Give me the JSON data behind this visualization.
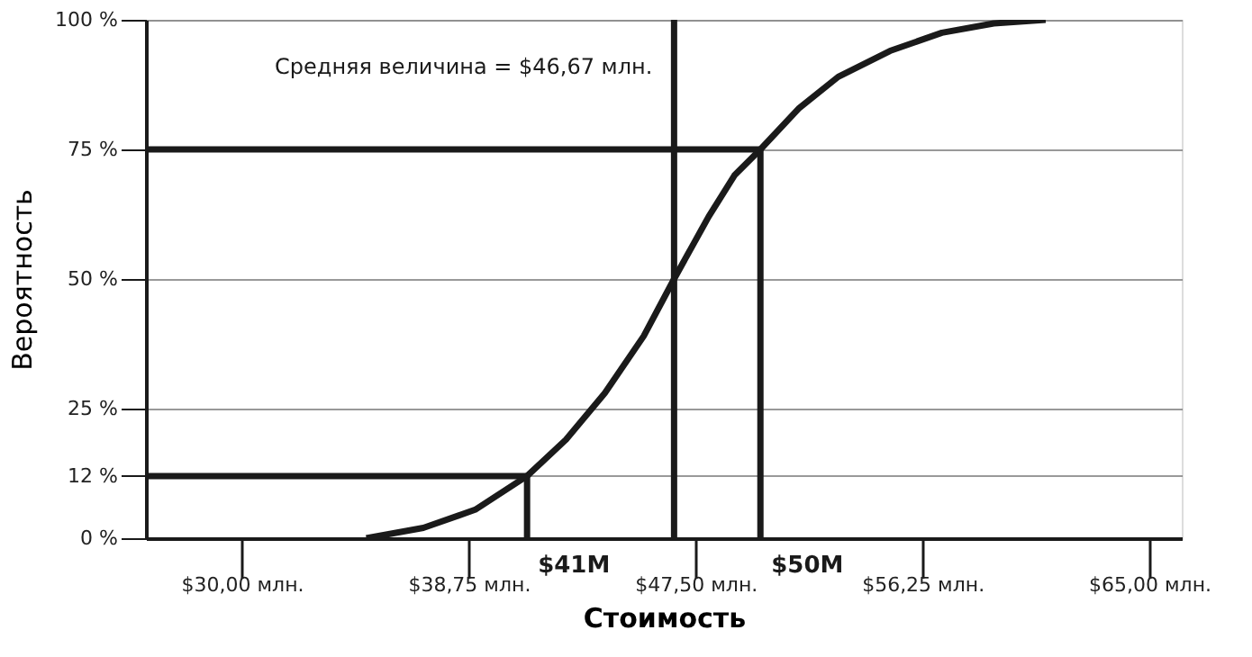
{
  "chart_data": {
    "type": "line",
    "xlabel": "Стоимость",
    "ylabel": "Вероятность",
    "xlim": [
      26.3,
      66.25
    ],
    "ylim": [
      0,
      100
    ],
    "xticks": [
      {
        "value": 30,
        "label": "$30,00 млн."
      },
      {
        "value": 38.75,
        "label": "$38,75 млн."
      },
      {
        "value": 47.5,
        "label": "$47,50 млн."
      },
      {
        "value": 56.25,
        "label": "$56,25 млн."
      },
      {
        "value": 65,
        "label": "$65,00 млн."
      }
    ],
    "yticks": [
      {
        "value": 0,
        "label": "0 %"
      },
      {
        "value": 12,
        "label": "12 %"
      },
      {
        "value": 25,
        "label": "25 %"
      },
      {
        "value": 50,
        "label": "50 %"
      },
      {
        "value": 75,
        "label": "75 %"
      },
      {
        "value": 100,
        "label": "100 %"
      }
    ],
    "grid": "y",
    "line_style": "solid",
    "marker": "none",
    "series": [
      {
        "color": "#1a1a1a",
        "x": [
          34.8,
          37,
          39,
          41,
          42.5,
          44,
          45.5,
          46.67,
          48,
          49,
          50,
          51.5,
          53,
          55,
          57,
          59,
          61
        ],
        "values": [
          0,
          2,
          5.5,
          12,
          19,
          28,
          39,
          50,
          62,
          70,
          75,
          83,
          89,
          94,
          97.5,
          99.3,
          100
        ]
      },
      {
        "type": "line",
        "color": "#1a1a1a",
        "x": [
          26.3,
          41,
          41
        ],
        "values": [
          12,
          12,
          0
        ]
      },
      {
        "type": "line",
        "color": "#1a1a1a",
        "x": [
          26.3,
          50,
          50
        ],
        "values": [
          75,
          75,
          0
        ]
      }
    ],
    "ref_lines": [
      {
        "axis": "x",
        "value": 46.67,
        "color": "#1a1a1a"
      }
    ],
    "annotations": [
      {
        "text": "Средняя величина = $46,67 млн.",
        "x": 46.67,
        "y": 91
      },
      {
        "text": "$41M",
        "x": 41,
        "y": 0
      },
      {
        "text": "$50M",
        "x": 50,
        "y": 0
      }
    ]
  }
}
